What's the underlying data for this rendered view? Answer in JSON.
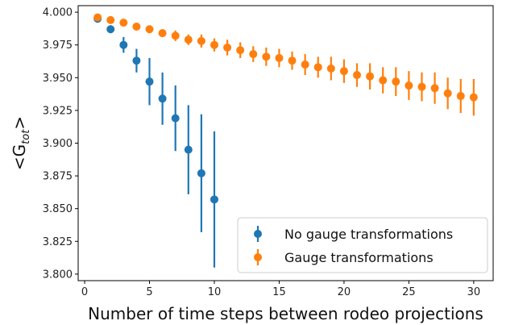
{
  "chart_data": {
    "type": "scatter",
    "title": "",
    "xlabel": "Number of time steps between rodeo projections",
    "ylabel_prefix": "<G",
    "ylabel_sub": "tot",
    "ylabel_suffix": ">",
    "xlim": [
      -0.5,
      31.5
    ],
    "ylim": [
      3.795,
      4.005
    ],
    "xticks": [
      0,
      5,
      10,
      15,
      20,
      25,
      30
    ],
    "yticks": [
      3.8,
      3.825,
      3.85,
      3.875,
      3.9,
      3.925,
      3.95,
      3.975,
      4.0
    ],
    "ytick_labels": [
      "3.800",
      "3.825",
      "3.850",
      "3.875",
      "3.900",
      "3.925",
      "3.950",
      "3.975",
      "4.000"
    ],
    "grid": false,
    "legend_position": "lower-right",
    "series": [
      {
        "name": "No gauge transformations",
        "color": "#1f77b4",
        "points": [
          {
            "x": 1,
            "y": 3.995,
            "err": 0.001
          },
          {
            "x": 2,
            "y": 3.987,
            "err": 0.003
          },
          {
            "x": 3,
            "y": 3.975,
            "err": 0.006
          },
          {
            "x": 4,
            "y": 3.963,
            "err": 0.009
          },
          {
            "x": 5,
            "y": 3.947,
            "err": 0.018
          },
          {
            "x": 6,
            "y": 3.934,
            "err": 0.02
          },
          {
            "x": 7,
            "y": 3.919,
            "err": 0.025
          },
          {
            "x": 8,
            "y": 3.895,
            "err": 0.034
          },
          {
            "x": 9,
            "y": 3.877,
            "err": 0.045
          },
          {
            "x": 10,
            "y": 3.857,
            "err": 0.052
          }
        ]
      },
      {
        "name": "Gauge transformations",
        "color": "#ff7f0e",
        "points": [
          {
            "x": 1,
            "y": 3.996,
            "err": 0.001
          },
          {
            "x": 2,
            "y": 3.994,
            "err": 0.002
          },
          {
            "x": 3,
            "y": 3.992,
            "err": 0.002
          },
          {
            "x": 4,
            "y": 3.989,
            "err": 0.002
          },
          {
            "x": 5,
            "y": 3.987,
            "err": 0.003
          },
          {
            "x": 6,
            "y": 3.984,
            "err": 0.003
          },
          {
            "x": 7,
            "y": 3.982,
            "err": 0.004
          },
          {
            "x": 8,
            "y": 3.979,
            "err": 0.004
          },
          {
            "x": 9,
            "y": 3.978,
            "err": 0.005
          },
          {
            "x": 10,
            "y": 3.975,
            "err": 0.005
          },
          {
            "x": 11,
            "y": 3.973,
            "err": 0.006
          },
          {
            "x": 12,
            "y": 3.971,
            "err": 0.006
          },
          {
            "x": 13,
            "y": 3.968,
            "err": 0.006
          },
          {
            "x": 14,
            "y": 3.966,
            "err": 0.007
          },
          {
            "x": 15,
            "y": 3.965,
            "err": 0.007
          },
          {
            "x": 16,
            "y": 3.963,
            "err": 0.007
          },
          {
            "x": 17,
            "y": 3.96,
            "err": 0.008
          },
          {
            "x": 18,
            "y": 3.958,
            "err": 0.008
          },
          {
            "x": 19,
            "y": 3.957,
            "err": 0.009
          },
          {
            "x": 20,
            "y": 3.955,
            "err": 0.009
          },
          {
            "x": 21,
            "y": 3.952,
            "err": 0.009
          },
          {
            "x": 22,
            "y": 3.951,
            "err": 0.01
          },
          {
            "x": 23,
            "y": 3.948,
            "err": 0.01
          },
          {
            "x": 24,
            "y": 3.947,
            "err": 0.011
          },
          {
            "x": 25,
            "y": 3.944,
            "err": 0.011
          },
          {
            "x": 26,
            "y": 3.943,
            "err": 0.011
          },
          {
            "x": 27,
            "y": 3.942,
            "err": 0.012
          },
          {
            "x": 28,
            "y": 3.938,
            "err": 0.012
          },
          {
            "x": 29,
            "y": 3.936,
            "err": 0.013
          },
          {
            "x": 30,
            "y": 3.935,
            "err": 0.014
          }
        ]
      }
    ]
  }
}
